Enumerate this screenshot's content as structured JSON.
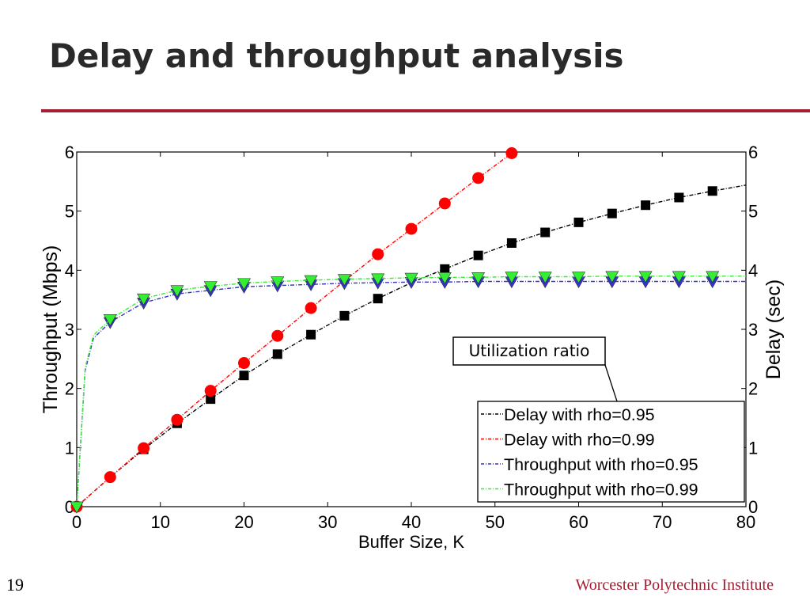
{
  "slide": {
    "title": "Delay and throughput analysis",
    "page_number": "19",
    "footer": "Worcester Polytechnic Institute",
    "accent_color": "#a41e34"
  },
  "chart_data": {
    "type": "line",
    "xlabel": "Buffer Size, K",
    "ylabel_left": "Throughput (Mbps)",
    "ylabel_right": "Delay (sec)",
    "xlim": [
      0,
      80
    ],
    "ylim_left": [
      0,
      6
    ],
    "ylim_right": [
      0,
      6
    ],
    "x_ticks": [
      0,
      10,
      20,
      30,
      40,
      50,
      60,
      70,
      80
    ],
    "y_ticks": [
      0,
      1,
      2,
      3,
      4,
      5,
      6
    ],
    "grid": false,
    "legend_placement": "bottom-right",
    "annotation": "Utilization ratio",
    "series": [
      {
        "name": "Delay with rho=0.95",
        "axis": "right",
        "color": "#000000",
        "marker": "square",
        "x": [
          0,
          4,
          8,
          12,
          16,
          20,
          24,
          28,
          32,
          36,
          40,
          44,
          48,
          52,
          56,
          60,
          64,
          68,
          72,
          76,
          80
        ],
        "values": [
          0,
          0.5,
          0.97,
          1.41,
          1.82,
          2.22,
          2.58,
          2.91,
          3.23,
          3.52,
          3.79,
          4.02,
          4.25,
          4.46,
          4.64,
          4.81,
          4.96,
          5.1,
          5.23,
          5.34,
          5.44
        ],
        "marker_x": [
          8,
          12,
          16,
          20,
          24,
          28,
          32,
          36,
          44,
          48,
          52,
          56,
          60,
          64,
          68,
          72,
          76
        ]
      },
      {
        "name": "Delay with rho=0.99",
        "axis": "right",
        "color": "#ff0000",
        "marker": "circle",
        "x": [
          0,
          4,
          8,
          12,
          16,
          20,
          24,
          28,
          32,
          36,
          40,
          44,
          48,
          52
        ],
        "values": [
          0,
          0.5,
          0.99,
          1.47,
          1.96,
          2.43,
          2.89,
          3.36,
          3.82,
          4.27,
          4.7,
          5.13,
          5.56,
          5.98
        ],
        "marker_x": [
          0,
          4,
          8,
          12,
          16,
          20,
          24,
          28,
          36,
          40,
          44,
          48,
          52
        ]
      },
      {
        "name": "Throughput with rho=0.95",
        "axis": "left",
        "color": "#3333cc",
        "marker": "triangle-down",
        "x": [
          0,
          1,
          2,
          4,
          8,
          12,
          16,
          20,
          24,
          28,
          32,
          36,
          40,
          44,
          48,
          52,
          56,
          60,
          64,
          68,
          72,
          76,
          80
        ],
        "values": [
          0,
          2.3,
          2.85,
          3.12,
          3.45,
          3.6,
          3.66,
          3.72,
          3.74,
          3.76,
          3.78,
          3.79,
          3.8,
          3.8,
          3.81,
          3.81,
          3.81,
          3.81,
          3.81,
          3.81,
          3.81,
          3.81,
          3.81
        ],
        "marker_x": [
          0,
          4,
          8,
          12,
          16,
          20,
          24,
          28,
          32,
          36,
          40,
          44,
          48,
          52,
          56,
          60,
          64,
          68,
          72,
          76
        ]
      },
      {
        "name": "Throughput with rho=0.99",
        "axis": "left",
        "color": "#33ee33",
        "marker": "triangle-down",
        "x": [
          0,
          1,
          2,
          4,
          8,
          12,
          16,
          20,
          24,
          28,
          32,
          36,
          40,
          44,
          48,
          52,
          56,
          60,
          64,
          68,
          72,
          76,
          80
        ],
        "values": [
          0,
          2.35,
          2.9,
          3.17,
          3.52,
          3.66,
          3.73,
          3.78,
          3.81,
          3.83,
          3.85,
          3.86,
          3.87,
          3.88,
          3.88,
          3.89,
          3.89,
          3.89,
          3.9,
          3.9,
          3.9,
          3.9,
          3.9
        ],
        "marker_x": [
          0,
          4,
          8,
          12,
          16,
          20,
          24,
          28,
          32,
          36,
          40,
          44,
          48,
          52,
          56,
          60,
          64,
          68,
          72,
          76
        ]
      }
    ]
  }
}
